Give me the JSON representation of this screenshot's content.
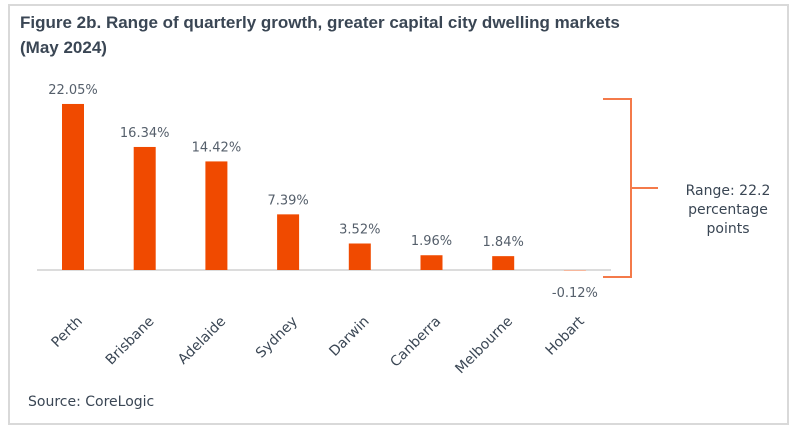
{
  "chart_data": {
    "type": "bar",
    "title": "Figure 2b. Range of quarterly growth, greater capital city dwelling markets (May 2024)",
    "categories": [
      "Perth",
      "Brisbane",
      "Adelaide",
      "Sydney",
      "Darwin",
      "Canberra",
      "Melbourne",
      "Hobart"
    ],
    "values": [
      22.05,
      16.34,
      14.42,
      7.39,
      3.52,
      1.96,
      1.84,
      -0.12
    ],
    "data_labels": [
      "22.05%",
      "16.34%",
      "14.42%",
      "7.39%",
      "3.52%",
      "1.96%",
      "1.84%",
      "-0.12%"
    ],
    "annotation": [
      "Range: 22.2",
      "percentage",
      "points"
    ],
    "source": "Source: CoreLogic",
    "grid": false,
    "colors": {
      "bar": "#f04a00",
      "bracket": "#f47a4a",
      "text": "#3a4654",
      "label": "#555f6b"
    }
  }
}
